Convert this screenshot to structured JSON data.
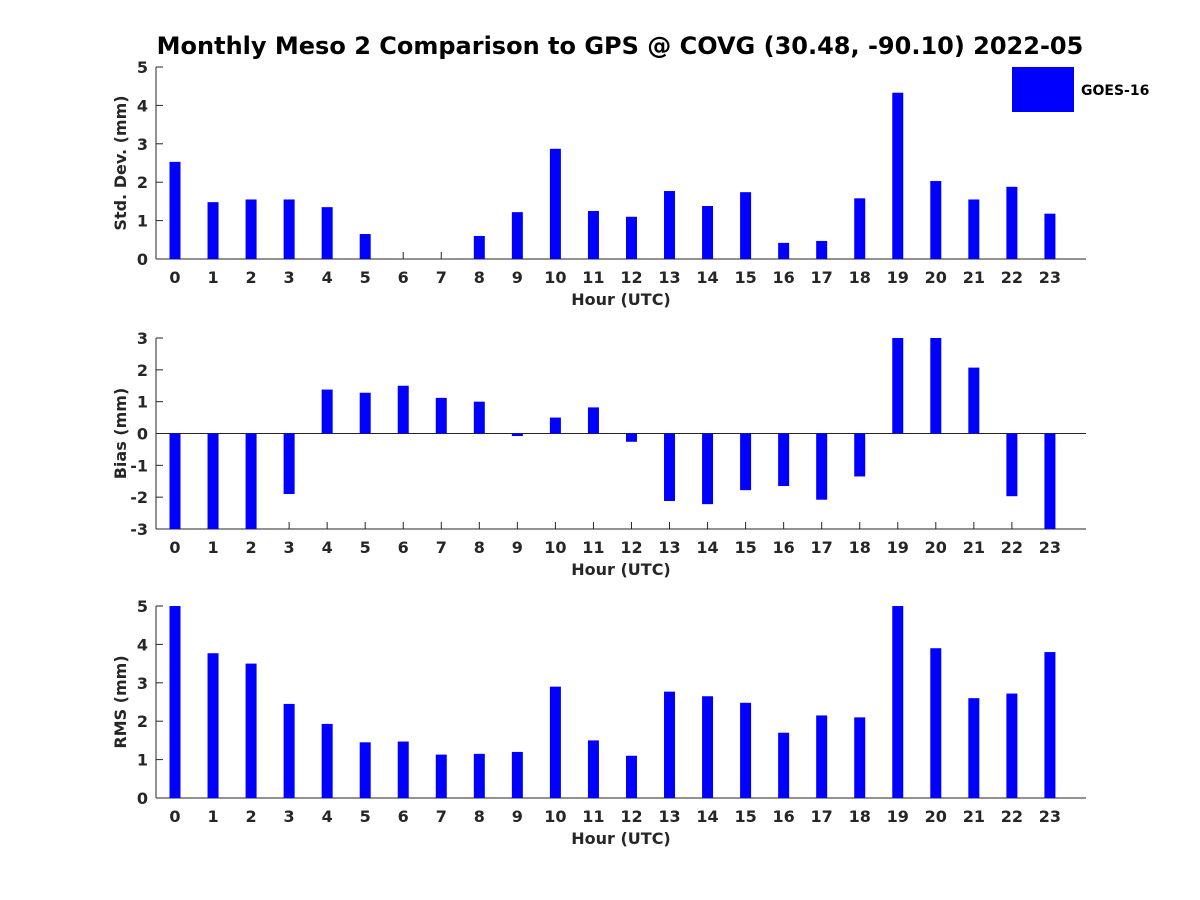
{
  "chart_title": "Monthly Meso 2 Comparison to GPS @ COVG (30.48, -90.10) 2022-05",
  "legend": {
    "label": "GOES-16",
    "color": "#0000ff"
  },
  "chart_data": [
    {
      "type": "bar",
      "title": "Monthly Meso 2 Comparison to GPS @ COVG (30.48, -90.10) 2022-05",
      "xlabel": "Hour (UTC)",
      "ylabel": "Std. Dev. (mm)",
      "categories": [
        "0",
        "1",
        "2",
        "3",
        "4",
        "5",
        "6",
        "7",
        "8",
        "9",
        "10",
        "11",
        "12",
        "13",
        "14",
        "15",
        "16",
        "17",
        "18",
        "19",
        "20",
        "21",
        "22",
        "23"
      ],
      "series": [
        {
          "name": "GOES-16",
          "color": "#0000ff",
          "values": [
            2.53,
            1.48,
            1.55,
            1.55,
            1.35,
            0.65,
            0.0,
            0.0,
            0.6,
            1.22,
            2.87,
            1.25,
            1.1,
            1.77,
            1.38,
            1.74,
            0.42,
            0.47,
            1.58,
            4.33,
            2.03,
            1.55,
            1.88,
            1.18
          ]
        }
      ],
      "ylim": [
        0,
        5
      ],
      "yticks": [
        0,
        1,
        2,
        3,
        4,
        5
      ],
      "legend_position": "top-right",
      "grid": false
    },
    {
      "type": "bar",
      "xlabel": "Hour (UTC)",
      "ylabel": "Bias (mm)",
      "categories": [
        "0",
        "1",
        "2",
        "3",
        "4",
        "5",
        "6",
        "7",
        "8",
        "9",
        "10",
        "11",
        "12",
        "13",
        "14",
        "15",
        "16",
        "17",
        "18",
        "19",
        "20",
        "21",
        "22",
        "23"
      ],
      "series": [
        {
          "name": "GOES-16",
          "color": "#0000ff",
          "values": [
            -3.0,
            -3.0,
            -3.0,
            -1.9,
            1.38,
            1.28,
            1.5,
            1.12,
            1.0,
            -0.08,
            0.5,
            0.82,
            -0.26,
            -2.12,
            -2.22,
            -1.78,
            -1.65,
            -2.08,
            -1.35,
            3.0,
            3.0,
            2.07,
            -1.97,
            -3.0
          ]
        }
      ],
      "ylim": [
        -3,
        3
      ],
      "yticks": [
        -3,
        -2,
        -1,
        0,
        1,
        2,
        3
      ],
      "grid": false
    },
    {
      "type": "bar",
      "xlabel": "Hour (UTC)",
      "ylabel": "RMS (mm)",
      "categories": [
        "0",
        "1",
        "2",
        "3",
        "4",
        "5",
        "6",
        "7",
        "8",
        "9",
        "10",
        "11",
        "12",
        "13",
        "14",
        "15",
        "16",
        "17",
        "18",
        "19",
        "20",
        "21",
        "22",
        "23"
      ],
      "series": [
        {
          "name": "GOES-16",
          "color": "#0000ff",
          "values": [
            5.0,
            3.77,
            3.5,
            2.45,
            1.93,
            1.45,
            1.47,
            1.13,
            1.15,
            1.2,
            2.9,
            1.5,
            1.1,
            2.77,
            2.65,
            2.48,
            1.7,
            2.15,
            2.1,
            5.0,
            3.9,
            2.6,
            2.72,
            3.8
          ]
        }
      ],
      "ylim": [
        0,
        5
      ],
      "yticks": [
        0,
        1,
        2,
        3,
        4,
        5
      ],
      "grid": false
    }
  ]
}
